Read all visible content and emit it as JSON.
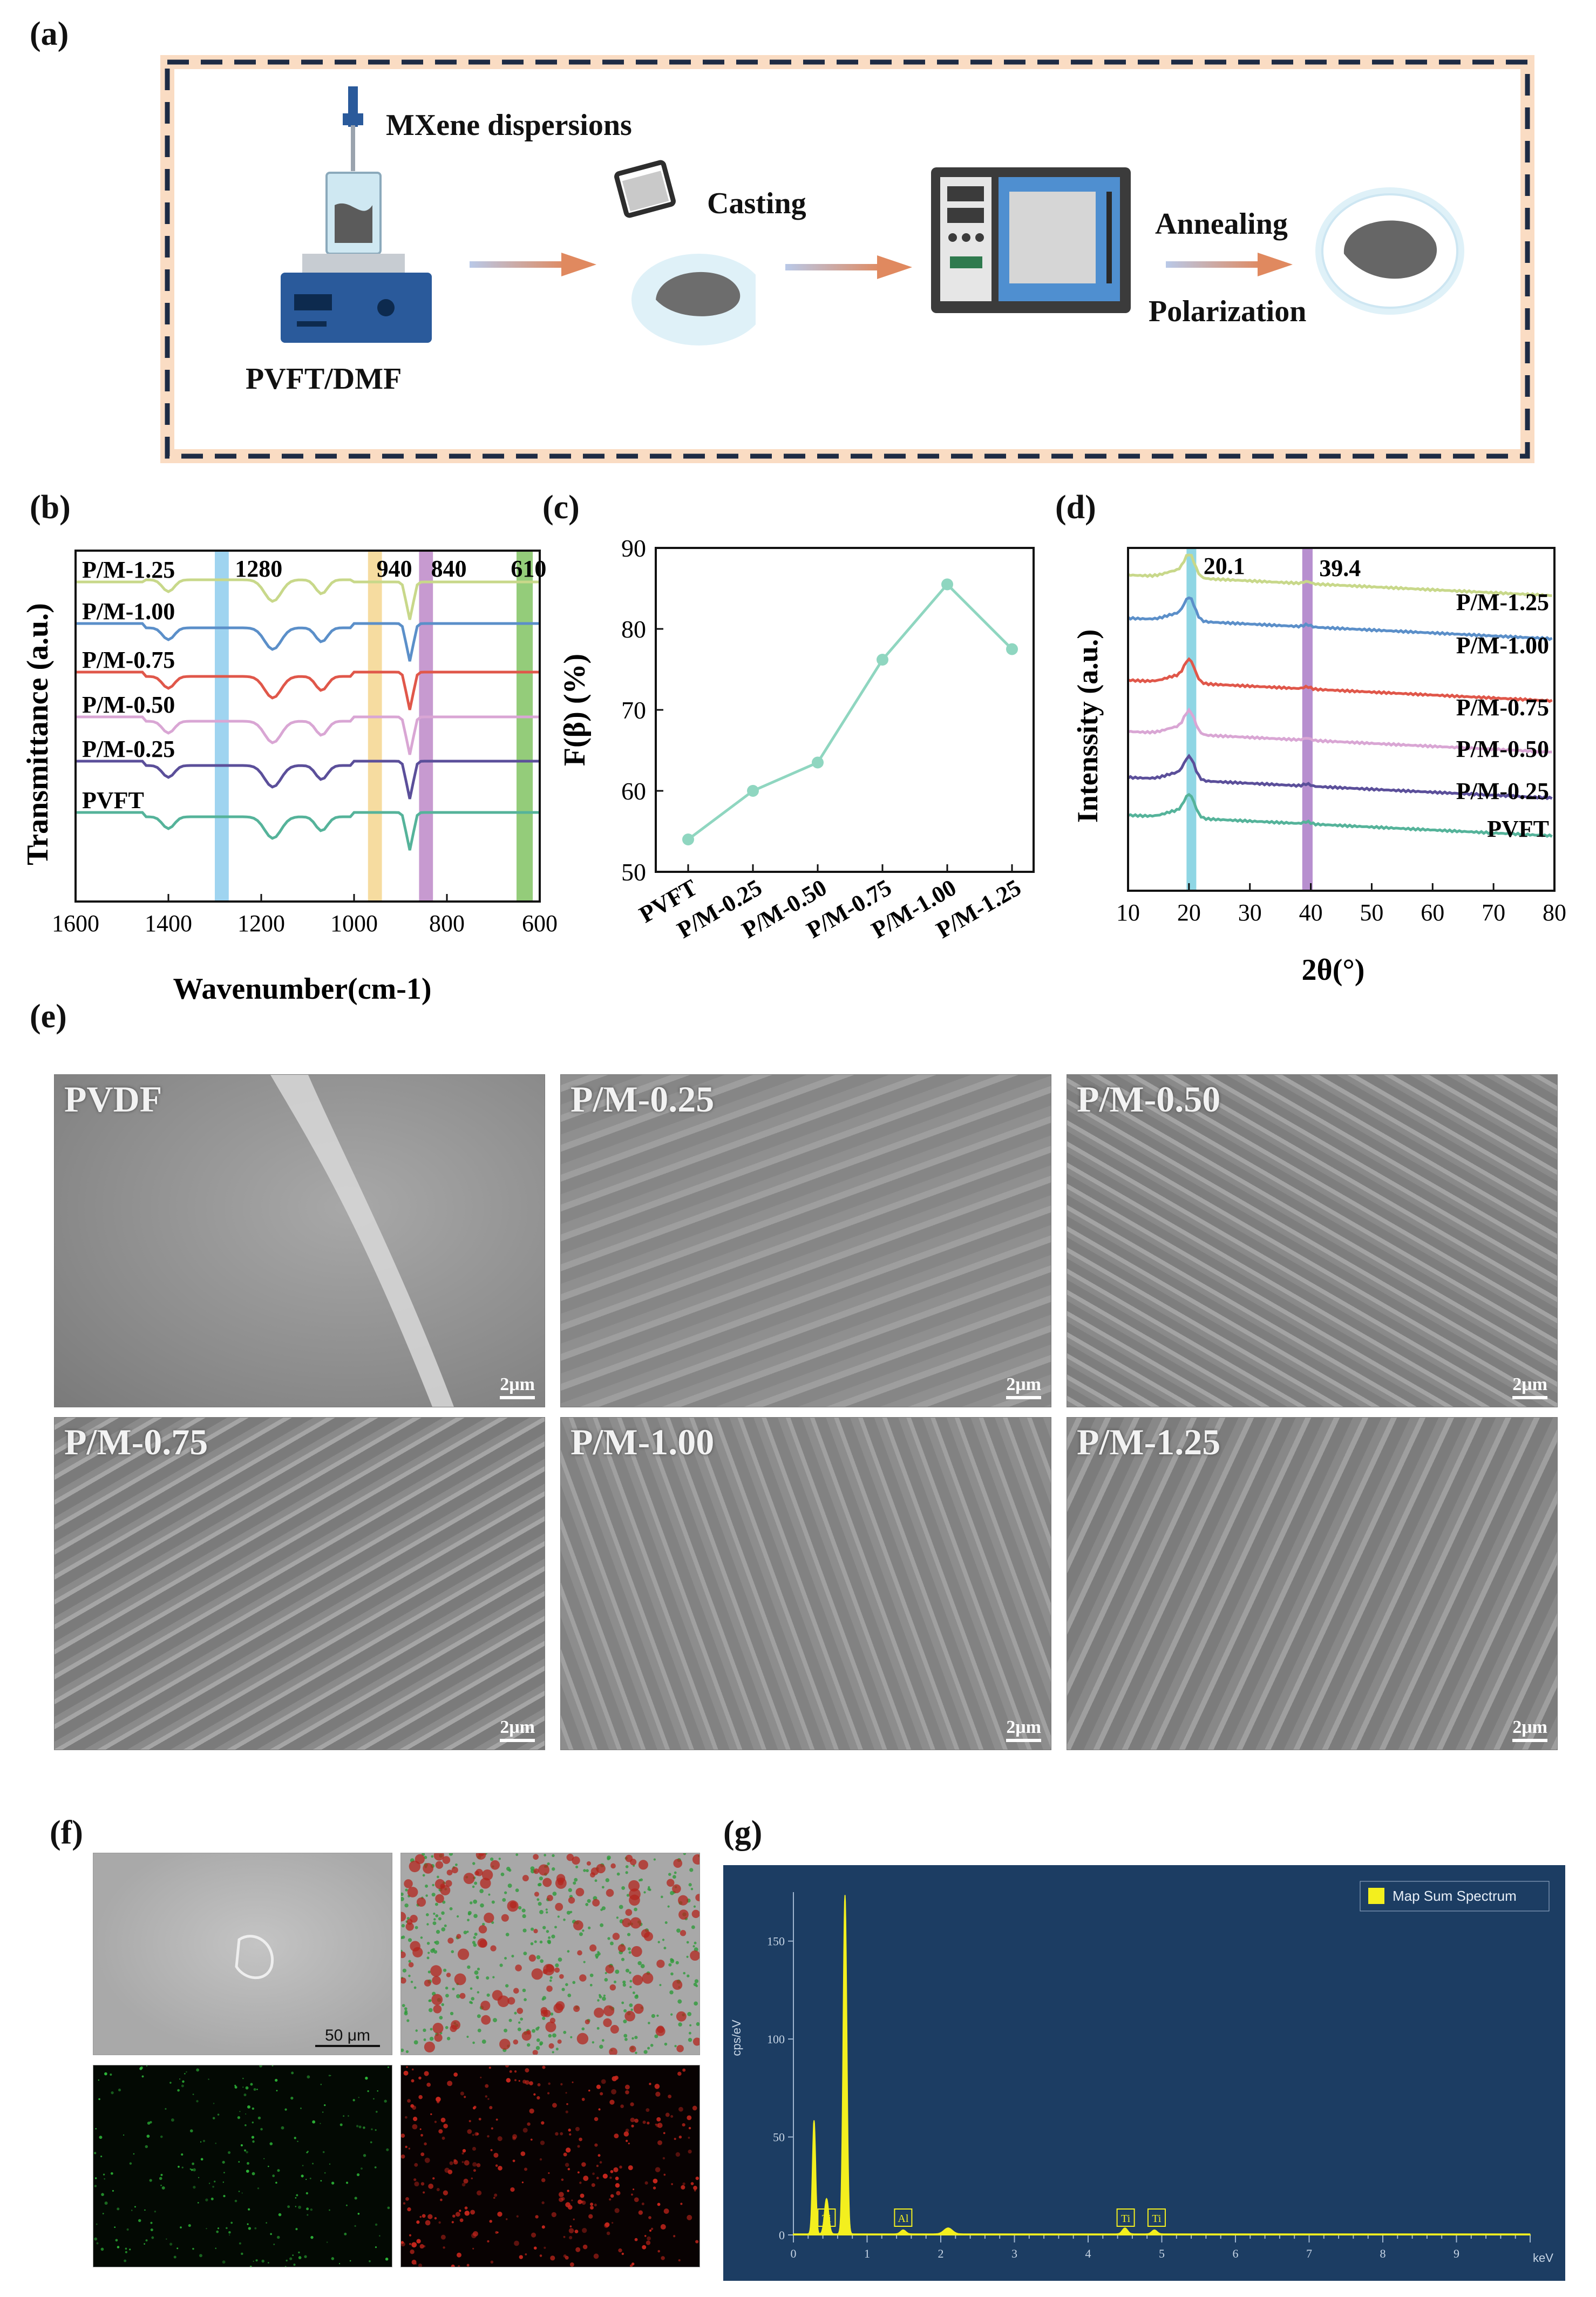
{
  "panel_labels": {
    "a": "(a)",
    "b": "(b)",
    "c": "(c)",
    "d": "(d)",
    "e": "(e)",
    "f": "(f)",
    "g": "(g)"
  },
  "schematic": {
    "mxene_label": "MXene dispersions",
    "casting_label": "Casting",
    "annealing_label": "Annealing",
    "polarization_label": "Polarization",
    "solution_label": "PVFT/DMF",
    "colors": {
      "frame_dash": "#1e2b44",
      "frame_glow": "#f3b27a",
      "arrow": "#e0895f",
      "instrument": "#2a5a9b"
    }
  },
  "ftir": {
    "xlabel": "Wavenumber(cm-1)",
    "ylabel": "Transmittance (a.u.)",
    "xticks": [
      "1600",
      "1400",
      "1200",
      "1000",
      "800",
      "600"
    ],
    "band_labels": [
      "1280",
      "940",
      "840",
      "610"
    ],
    "series_labels": [
      "P/M-1.25",
      "P/M-1.00",
      "P/M-0.75",
      "P/M-0.50",
      "P/M-0.25",
      "PVFT"
    ],
    "series_colors": [
      "#c8d88a",
      "#5b8fc9",
      "#e0574a",
      "#d9a6d4",
      "#5b4f9a",
      "#55b39a"
    ],
    "band_colors": [
      "#9fd4f0",
      "#f6dca0",
      "#c79ad0",
      "#94cc7a"
    ]
  },
  "chart_data": {
    "type": "line",
    "categories": [
      "PVFT",
      "P/M-0.25",
      "P/M-0.50",
      "P/M-0.75",
      "P/M-1.00",
      "P/M-1.25"
    ],
    "series": [
      {
        "values": [
          54.0,
          60.0,
          63.5,
          76.2,
          85.5,
          77.5
        ]
      }
    ],
    "ylabel": "F(β) (%)",
    "ylim": [
      50,
      90
    ],
    "yticks": [
      "50",
      "60",
      "70",
      "80",
      "90"
    ],
    "color": "#8fd6c0"
  },
  "xrd": {
    "xlabel": "2θ(°)",
    "ylabel": "Intenssity (a.u.)",
    "xticks": [
      "10",
      "20",
      "30",
      "40",
      "50",
      "60",
      "70",
      "80"
    ],
    "peak_labels": [
      "20.1",
      "39.4"
    ],
    "series_labels": [
      "P/M-1.25",
      "P/M-1.00",
      "P/M-0.75",
      "P/M-0.50",
      "P/M-0.25",
      "PVFT"
    ],
    "series_colors": [
      "#c8d88a",
      "#5b8fc9",
      "#e0574a",
      "#d9a6d4",
      "#5b4f9a",
      "#55b39a"
    ]
  },
  "sem": {
    "captions": [
      "PVDF",
      "P/M-0.25",
      "P/M-0.50",
      "P/M-0.75",
      "P/M-1.00",
      "P/M-1.25"
    ],
    "scalebar": "2μm"
  },
  "eds_map": {
    "scalebar": "50 μm"
  },
  "eds_spectrum": {
    "legend": "Map Sum Spectrum",
    "ylabel": "cps/eV",
    "xunit": "keV",
    "yticks": [
      "0",
      "50",
      "100",
      "150"
    ],
    "xticks": [
      "0",
      "1",
      "2",
      "3",
      "4",
      "5",
      "6",
      "7",
      "8",
      "9"
    ],
    "peak_labels": [
      "Ti",
      "Al",
      "Ti",
      "Ti"
    ],
    "colors": {
      "background": "#1c3d63",
      "peak": "#f3ef1e"
    }
  }
}
